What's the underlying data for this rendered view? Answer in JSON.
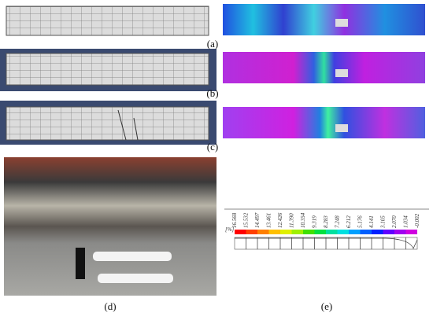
{
  "panels": {
    "a": "(a)",
    "b": "(b)",
    "c": "(c)",
    "d": "(d)",
    "e": "(e)"
  },
  "colorbar": {
    "unit": "[%]",
    "ticks": [
      "16.568",
      "15.532",
      "14.497",
      "13.461",
      "12.426",
      "11.390",
      "10.354",
      "9.319",
      "8.283",
      "7.248",
      "6.212",
      "5.176",
      "4.141",
      "3.105",
      "2.070",
      "1.034",
      "-0.002"
    ]
  }
}
